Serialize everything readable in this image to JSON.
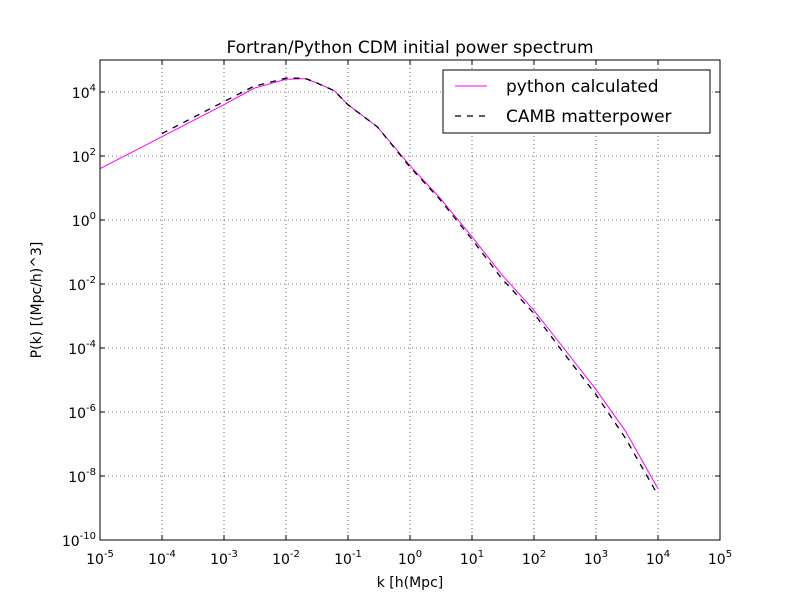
{
  "chart_data": {
    "type": "line",
    "title": "Fortran/Python CDM initial power spectrum",
    "xlabel": "k [h(Mpc]",
    "ylabel": "P(k) [(Mpc/h)^3]",
    "xscale": "log",
    "yscale": "log",
    "xlim": [
      1e-05,
      100000.0
    ],
    "ylim": [
      1e-10,
      100000.0
    ],
    "grid": true,
    "legend_position": "top-right",
    "x_ticks": [
      {
        "base": "10",
        "exp": "-5"
      },
      {
        "base": "10",
        "exp": "-4"
      },
      {
        "base": "10",
        "exp": "-3"
      },
      {
        "base": "10",
        "exp": "-2"
      },
      {
        "base": "10",
        "exp": "-1"
      },
      {
        "base": "10",
        "exp": "0"
      },
      {
        "base": "10",
        "exp": "1"
      },
      {
        "base": "10",
        "exp": "2"
      },
      {
        "base": "10",
        "exp": "3"
      },
      {
        "base": "10",
        "exp": "4"
      },
      {
        "base": "10",
        "exp": "5"
      }
    ],
    "y_ticks": [
      {
        "base": "10",
        "exp": "-10"
      },
      {
        "base": "10",
        "exp": "-8"
      },
      {
        "base": "10",
        "exp": "-6"
      },
      {
        "base": "10",
        "exp": "-4"
      },
      {
        "base": "10",
        "exp": "-2"
      },
      {
        "base": "10",
        "exp": "0"
      },
      {
        "base": "10",
        "exp": "2"
      },
      {
        "base": "10",
        "exp": "4"
      }
    ],
    "series": [
      {
        "name": "python calculated",
        "color": "#ff00ff",
        "style": "solid",
        "x": [
          1e-05,
          0.0001,
          0.001,
          0.003,
          0.01,
          0.02,
          0.03,
          0.06,
          0.1,
          0.3,
          1,
          3,
          10,
          30,
          100,
          300,
          1000,
          3000,
          10000
        ],
        "y": [
          40,
          400,
          4000,
          13000,
          25000,
          26000,
          20000,
          11000,
          4000,
          800,
          50,
          5,
          0.3,
          0.02,
          0.0015,
          0.0001,
          5e-06,
          2.5e-07,
          4e-09
        ]
      },
      {
        "name": "CAMB matterpower",
        "color": "#000000",
        "style": "dashed",
        "x": [
          0.0001,
          0.001,
          0.003,
          0.01,
          0.02,
          0.03,
          0.06,
          0.1,
          0.3,
          1,
          3,
          10,
          30,
          100,
          300,
          1000,
          3000,
          10000
        ],
        "y": [
          500,
          5000,
          15000,
          27000,
          27000,
          20000,
          11000,
          4000,
          800,
          45,
          4.5,
          0.25,
          0.015,
          0.0012,
          7e-05,
          3.5e-06,
          1.5e-07,
          2.5e-09
        ]
      }
    ]
  }
}
